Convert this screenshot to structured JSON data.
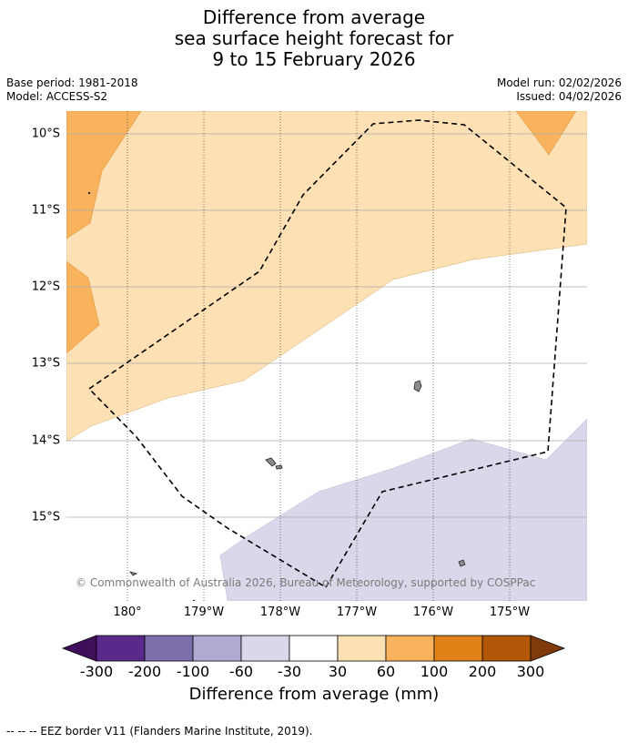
{
  "title": {
    "line1": "Difference from average",
    "line2": "sea surface height forecast for",
    "line3": "9 to 15 February 2026"
  },
  "meta": {
    "base_period": "Base period: 1981-2018",
    "model": "Model: ACCESS-S2",
    "model_run": "Model run: 02/02/2026",
    "issued": "Issued: 04/02/2026"
  },
  "map": {
    "lat_labels": [
      "10°S",
      "11°S",
      "12°S",
      "13°S",
      "14°S",
      "15°S"
    ],
    "lon_labels": [
      "180°",
      "179°W",
      "178°W",
      "177°W",
      "176°W",
      "175°W"
    ],
    "copyright": "© Commonwealth of Australia 2026, Bureau of Meteorology, supported by COSPPac"
  },
  "legend": {
    "title": "Difference from average (mm)",
    "tick_labels": [
      "-300",
      "-200",
      "-100",
      "-60",
      "-30",
      "30",
      "60",
      "100",
      "200",
      "300"
    ],
    "colors": [
      "#3f0f5c",
      "#5a2a8a",
      "#7d6daa",
      "#b0a9d2",
      "#d8d8ea",
      "#ffffff",
      "#fde0b4",
      "#f9b35c",
      "#e08217",
      "#b15708",
      "#7f3c0a"
    ]
  },
  "footnote": "--  --  -- EEZ border V11 (Flanders Marine Institute, 2019)."
}
